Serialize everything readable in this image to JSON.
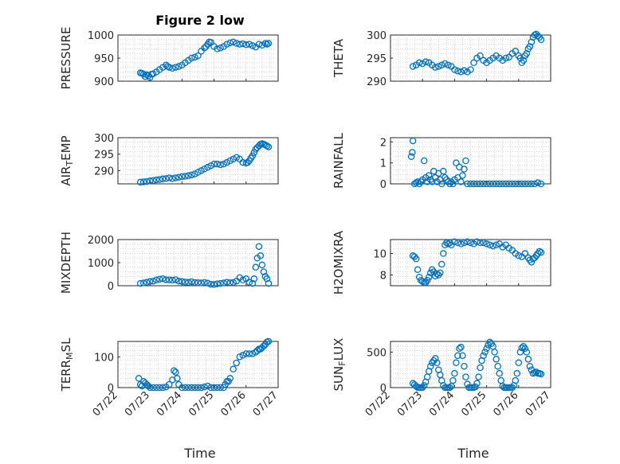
{
  "figure": {
    "title": "Figure 2 low",
    "xlabel": "Time"
  },
  "colors": {
    "marker": "#0072BD",
    "axis": "#262626"
  },
  "chart_data": [
    {
      "type": "scatter",
      "ylabel": "PRESSURE",
      "ylim": [
        900,
        1000
      ],
      "yticks": [
        900,
        950,
        1000
      ],
      "xlim": [
        0,
        5
      ],
      "xticks": [
        "07/22",
        "07/23",
        "07/24",
        "07/25",
        "07/26",
        "07/27"
      ],
      "grid": true,
      "x": [
        0.7,
        0.75,
        0.8,
        0.85,
        0.9,
        0.95,
        1.0,
        1.05,
        1.1,
        1.2,
        1.3,
        1.4,
        1.5,
        1.55,
        1.6,
        1.7,
        1.8,
        1.9,
        2.0,
        2.1,
        2.2,
        2.3,
        2.4,
        2.5,
        2.6,
        2.7,
        2.75,
        2.8,
        2.85,
        2.9,
        3.0,
        3.1,
        3.2,
        3.3,
        3.4,
        3.5,
        3.6,
        3.7,
        3.8,
        3.9,
        4.0,
        4.1,
        4.2,
        4.3,
        4.4,
        4.5,
        4.6,
        4.65,
        4.7
      ],
      "y": [
        918,
        917,
        915,
        910,
        914,
        912,
        908,
        915,
        916,
        920,
        925,
        930,
        935,
        932,
        930,
        928,
        930,
        932,
        935,
        940,
        945,
        950,
        952,
        955,
        965,
        972,
        975,
        980,
        985,
        984,
        975,
        970,
        972,
        975,
        980,
        983,
        985,
        982,
        980,
        981,
        979,
        980,
        977,
        974,
        980,
        978,
        982,
        980,
        982
      ]
    },
    {
      "type": "scatter",
      "ylabel": "THETA",
      "ylim": [
        290,
        300
      ],
      "yticks": [
        290,
        295,
        300
      ],
      "xlim": [
        0,
        5
      ],
      "xticks": [
        "07/22",
        "07/23",
        "07/24",
        "07/25",
        "07/26",
        "07/27"
      ],
      "grid": true,
      "x": [
        0.7,
        0.8,
        0.9,
        1.0,
        1.1,
        1.2,
        1.3,
        1.4,
        1.5,
        1.6,
        1.7,
        1.8,
        1.9,
        2.0,
        2.1,
        2.2,
        2.3,
        2.4,
        2.5,
        2.6,
        2.7,
        2.8,
        2.9,
        3.0,
        3.1,
        3.2,
        3.3,
        3.4,
        3.5,
        3.6,
        3.7,
        3.8,
        3.9,
        4.0,
        4.05,
        4.1,
        4.15,
        4.2,
        4.25,
        4.3,
        4.35,
        4.4,
        4.45,
        4.5,
        4.55,
        4.6,
        4.65,
        4.7
      ],
      "y": [
        293.2,
        293.5,
        294,
        293.8,
        294.2,
        294,
        293.5,
        293,
        293.2,
        293.5,
        293.8,
        293.5,
        293.2,
        292.5,
        292.2,
        292,
        292.3,
        292,
        292.5,
        294,
        295,
        295.5,
        294.5,
        294,
        294.5,
        295,
        295.5,
        295,
        294.5,
        295,
        295.2,
        296,
        296.5,
        295.5,
        295,
        294,
        294.5,
        295.5,
        296,
        297,
        297.5,
        298.5,
        299.5,
        300,
        300.2,
        299.8,
        299.5,
        299
      ]
    },
    {
      "type": "scatter",
      "ylabel": "AIR_TEMP",
      "ylim": [
        286,
        300
      ],
      "yticks": [
        290,
        295,
        300
      ],
      "xlim": [
        0,
        5
      ],
      "xticks": [
        "07/22",
        "07/23",
        "07/24",
        "07/25",
        "07/26",
        "07/27"
      ],
      "grid": true,
      "x": [
        0.7,
        0.8,
        0.9,
        1.0,
        1.1,
        1.2,
        1.3,
        1.4,
        1.5,
        1.6,
        1.7,
        1.8,
        1.9,
        2.0,
        2.1,
        2.2,
        2.3,
        2.4,
        2.5,
        2.6,
        2.7,
        2.8,
        2.9,
        3.0,
        3.1,
        3.2,
        3.3,
        3.4,
        3.5,
        3.6,
        3.7,
        3.8,
        3.9,
        4.0,
        4.05,
        4.1,
        4.15,
        4.2,
        4.25,
        4.3,
        4.35,
        4.4,
        4.45,
        4.5,
        4.55,
        4.6,
        4.65,
        4.7
      ],
      "y": [
        286.5,
        286.6,
        286.7,
        286.9,
        287,
        287.2,
        287.3,
        287.5,
        287.6,
        287.8,
        287.6,
        287.8,
        288,
        288.2,
        288.3,
        288.5,
        288.7,
        289,
        289.5,
        290,
        290.5,
        291,
        291.5,
        292,
        292,
        291.8,
        292,
        292.5,
        293,
        293.5,
        294,
        293.5,
        292.5,
        292.3,
        292.5,
        293,
        293.8,
        294.5,
        295.5,
        296.5,
        297,
        297.5,
        298,
        298.2,
        298,
        297.8,
        297.5,
        297.2
      ]
    },
    {
      "type": "scatter",
      "ylabel": "RAINFALL",
      "ylim": [
        0,
        2.2
      ],
      "yticks": [
        0,
        1,
        2
      ],
      "xlim": [
        0,
        5
      ],
      "xticks": [
        "07/22",
        "07/23",
        "07/24",
        "07/25",
        "07/26",
        "07/27"
      ],
      "grid": true,
      "x": [
        0.65,
        0.68,
        0.7,
        0.75,
        0.8,
        0.85,
        0.9,
        0.95,
        1.0,
        1.05,
        1.1,
        1.15,
        1.2,
        1.25,
        1.3,
        1.35,
        1.4,
        1.45,
        1.5,
        1.55,
        1.6,
        1.65,
        1.7,
        1.75,
        1.8,
        1.85,
        1.9,
        1.95,
        2.0,
        2.05,
        2.1,
        2.15,
        2.2,
        2.25,
        2.3,
        2.35,
        2.4,
        2.5,
        2.6,
        2.7,
        2.8,
        2.9,
        3.0,
        3.1,
        3.2,
        3.3,
        3.4,
        3.5,
        3.6,
        3.7,
        3.8,
        3.9,
        4.0,
        4.1,
        4.2,
        4.3,
        4.4,
        4.5,
        4.6,
        4.7
      ],
      "y": [
        1.3,
        1.5,
        2.05,
        0,
        0.05,
        0.1,
        0.0,
        0.1,
        0.2,
        1.1,
        0.3,
        0.1,
        0.4,
        0.2,
        0.1,
        0.6,
        0.3,
        0.1,
        0.5,
        0.2,
        0.0,
        0.6,
        0.3,
        0.2,
        0.1,
        0.0,
        0.1,
        0.0,
        0.2,
        1.0,
        0.3,
        0.8,
        0.1,
        0.4,
        0.7,
        1.1,
        0.0,
        0,
        0,
        0,
        0,
        0,
        0,
        0,
        0,
        0,
        0,
        0,
        0,
        0,
        0,
        0,
        0,
        0,
        0,
        0,
        0,
        0,
        0.05,
        0
      ]
    },
    {
      "type": "scatter",
      "ylabel": "MIXDEPTH",
      "ylim": [
        0,
        2000
      ],
      "yticks": [
        0,
        1000,
        2000
      ],
      "xlim": [
        0,
        5
      ],
      "xticks": [
        "07/22",
        "07/23",
        "07/24",
        "07/25",
        "07/26",
        "07/27"
      ],
      "grid": true,
      "x": [
        0.7,
        0.8,
        0.9,
        1.0,
        1.1,
        1.2,
        1.3,
        1.4,
        1.5,
        1.6,
        1.7,
        1.8,
        1.9,
        2.0,
        2.1,
        2.2,
        2.3,
        2.4,
        2.5,
        2.6,
        2.7,
        2.8,
        2.9,
        3.0,
        3.1,
        3.2,
        3.3,
        3.4,
        3.5,
        3.6,
        3.7,
        3.8,
        3.9,
        4.0,
        4.1,
        4.2,
        4.25,
        4.3,
        4.35,
        4.4,
        4.45,
        4.5,
        4.55,
        4.6,
        4.65,
        4.7
      ],
      "y": [
        100,
        120,
        150,
        180,
        200,
        250,
        280,
        300,
        260,
        250,
        240,
        260,
        200,
        180,
        160,
        150,
        170,
        140,
        130,
        120,
        140,
        110,
        60,
        50,
        80,
        100,
        120,
        150,
        130,
        140,
        200,
        350,
        250,
        300,
        150,
        100,
        300,
        800,
        1200,
        1700,
        1300,
        900,
        600,
        400,
        300,
        100
      ]
    },
    {
      "type": "scatter",
      "ylabel": "H2OMIXRA",
      "ylim": [
        7,
        11.3
      ],
      "yticks": [
        8,
        10
      ],
      "xlim": [
        0,
        5
      ],
      "xticks": [
        "07/22",
        "07/23",
        "07/24",
        "07/25",
        "07/26",
        "07/27"
      ],
      "grid": true,
      "x": [
        0.7,
        0.75,
        0.8,
        0.85,
        0.9,
        0.95,
        1.0,
        1.05,
        1.1,
        1.15,
        1.2,
        1.25,
        1.3,
        1.35,
        1.4,
        1.45,
        1.5,
        1.55,
        1.6,
        1.65,
        1.7,
        1.75,
        1.8,
        1.85,
        1.9,
        2.0,
        2.1,
        2.2,
        2.3,
        2.4,
        2.5,
        2.6,
        2.7,
        2.8,
        2.9,
        3.0,
        3.1,
        3.2,
        3.3,
        3.4,
        3.5,
        3.6,
        3.7,
        3.8,
        3.9,
        4.0,
        4.1,
        4.2,
        4.3,
        4.35,
        4.4,
        4.45,
        4.5,
        4.55,
        4.6,
        4.65,
        4.7
      ],
      "y": [
        9.8,
        9.7,
        9.5,
        8.5,
        7.8,
        7.5,
        7.4,
        7.3,
        7.3,
        7.5,
        7.8,
        8.2,
        8.5,
        8.3,
        7.9,
        8.1,
        8.0,
        8.2,
        9.0,
        10.0,
        10.8,
        11.0,
        10.9,
        11.0,
        10.8,
        11.1,
        11.0,
        10.9,
        11.0,
        11.1,
        11.0,
        10.9,
        11.1,
        11.0,
        11.0,
        10.9,
        10.8,
        10.7,
        10.8,
        10.9,
        10.6,
        10.8,
        10.5,
        10.3,
        10.0,
        9.8,
        9.7,
        10.0,
        9.6,
        9.4,
        9.2,
        9.5,
        9.6,
        9.8,
        10.0,
        10.2,
        10.1
      ]
    },
    {
      "type": "scatter",
      "ylabel": "TERR_MSL",
      "ylim": [
        0,
        150
      ],
      "yticks": [
        0,
        100
      ],
      "xlim": [
        0,
        5
      ],
      "xticks": [
        "07/22",
        "07/23",
        "07/24",
        "07/25",
        "07/26",
        "07/27"
      ],
      "grid": true,
      "x": [
        0.65,
        0.7,
        0.75,
        0.8,
        0.85,
        0.9,
        0.95,
        1.0,
        1.1,
        1.2,
        1.3,
        1.4,
        1.5,
        1.6,
        1.7,
        1.75,
        1.8,
        1.85,
        1.9,
        2.0,
        2.1,
        2.2,
        2.3,
        2.4,
        2.5,
        2.6,
        2.7,
        2.8,
        2.9,
        3.0,
        3.1,
        3.2,
        3.3,
        3.35,
        3.4,
        3.45,
        3.5,
        3.6,
        3.7,
        3.8,
        3.9,
        4.0,
        4.1,
        4.2,
        4.3,
        4.35,
        4.4,
        4.45,
        4.5,
        4.55,
        4.6,
        4.65,
        4.7
      ],
      "y": [
        30,
        10,
        5,
        20,
        15,
        10,
        5,
        0,
        0,
        0,
        0,
        0,
        2,
        10,
        25,
        55,
        50,
        30,
        10,
        0,
        0,
        0,
        0,
        0,
        0,
        0,
        2,
        5,
        0,
        0,
        0,
        0,
        0,
        10,
        20,
        20,
        30,
        60,
        80,
        100,
        105,
        110,
        110,
        110,
        115,
        120,
        125,
        125,
        130,
        135,
        140,
        148,
        150
      ]
    },
    {
      "type": "scatter",
      "ylabel": "SUN_FLUX",
      "ylim": [
        0,
        650
      ],
      "yticks": [
        0,
        500
      ],
      "xlim": [
        0,
        5
      ],
      "xticks": [
        "07/22",
        "07/23",
        "07/24",
        "07/25",
        "07/26",
        "07/27"
      ],
      "grid": true,
      "x": [
        0.7,
        0.75,
        0.8,
        0.85,
        0.9,
        0.95,
        1.0,
        1.05,
        1.1,
        1.15,
        1.2,
        1.25,
        1.3,
        1.35,
        1.4,
        1.45,
        1.5,
        1.55,
        1.6,
        1.65,
        1.7,
        1.75,
        1.8,
        1.85,
        1.9,
        1.95,
        2.0,
        2.05,
        2.1,
        2.15,
        2.2,
        2.25,
        2.3,
        2.35,
        2.4,
        2.45,
        2.5,
        2.55,
        2.6,
        2.65,
        2.7,
        2.75,
        2.8,
        2.85,
        2.9,
        2.95,
        3.0,
        3.05,
        3.1,
        3.15,
        3.2,
        3.25,
        3.3,
        3.35,
        3.4,
        3.45,
        3.5,
        3.55,
        3.6,
        3.65,
        3.7,
        3.75,
        3.8,
        3.85,
        3.9,
        3.95,
        4.0,
        4.05,
        4.1,
        4.15,
        4.2,
        4.25,
        4.3,
        4.35,
        4.4,
        4.45,
        4.5,
        4.55,
        4.6,
        4.65,
        4.7
      ],
      "y": [
        60,
        40,
        20,
        0,
        0,
        0,
        0,
        30,
        80,
        150,
        230,
        300,
        350,
        380,
        410,
        350,
        250,
        180,
        100,
        30,
        0,
        0,
        0,
        0,
        20,
        100,
        200,
        350,
        450,
        550,
        570,
        450,
        300,
        150,
        50,
        0,
        0,
        0,
        0,
        10,
        60,
        150,
        280,
        380,
        450,
        500,
        550,
        600,
        640,
        620,
        580,
        500,
        400,
        300,
        200,
        100,
        20,
        0,
        0,
        0,
        0,
        0,
        0,
        30,
        100,
        200,
        350,
        500,
        560,
        580,
        550,
        500,
        400,
        300,
        250,
        200,
        210,
        220,
        200,
        200,
        190
      ]
    }
  ]
}
